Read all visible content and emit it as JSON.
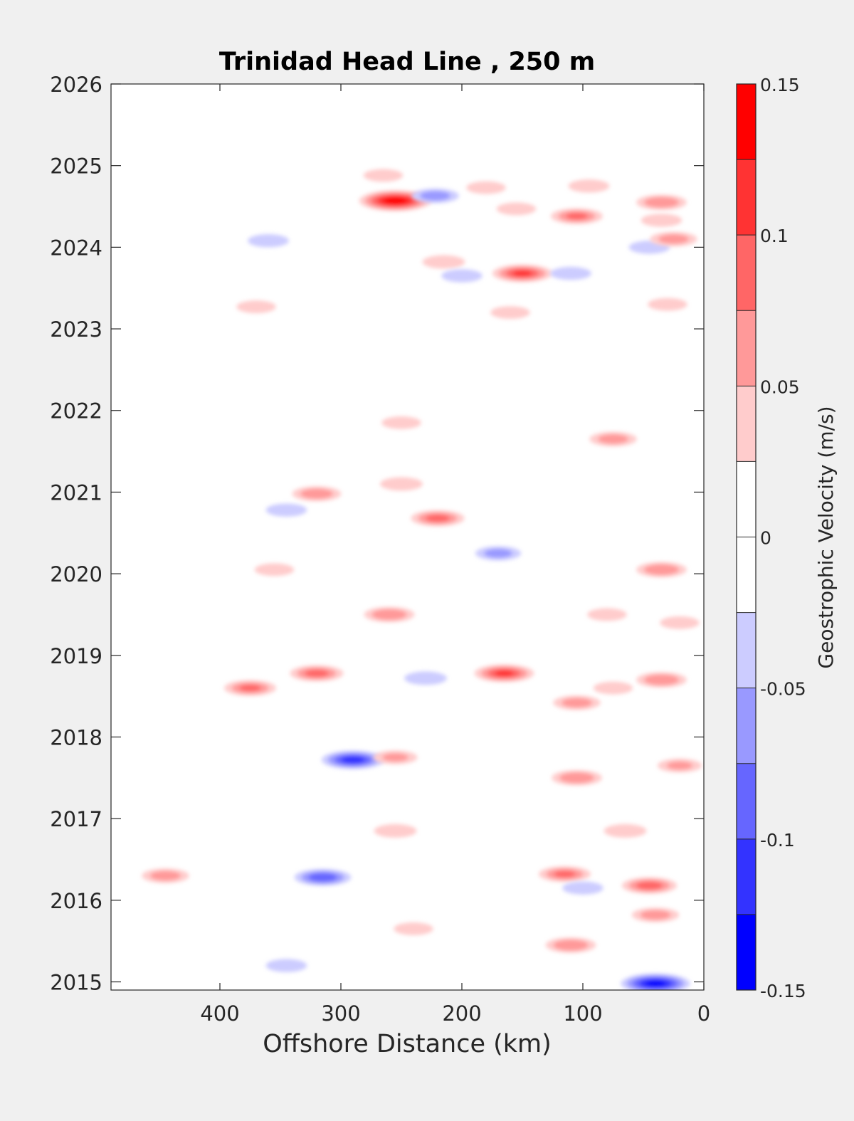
{
  "chart_data": {
    "type": "heatmap",
    "title": "Trinidad Head Line , 250 m",
    "xlabel": "Offshore Distance (km)",
    "ylabel": "",
    "xlim": [
      490,
      0
    ],
    "ylim": [
      2014.9,
      2026
    ],
    "x_ticks": [
      400,
      300,
      200,
      100,
      0
    ],
    "x_tick_labels": [
      "400",
      "300",
      "200",
      "100",
      "0"
    ],
    "y_ticks": [
      2015,
      2016,
      2017,
      2018,
      2019,
      2020,
      2021,
      2022,
      2023,
      2024,
      2025,
      2026
    ],
    "y_tick_labels": [
      "2015",
      "2016",
      "2017",
      "2018",
      "2019",
      "2020",
      "2021",
      "2022",
      "2023",
      "2024",
      "2025",
      "2026"
    ],
    "colorbar": {
      "label": "Geostrophic Velocity (m/s)",
      "range": [
        -0.15,
        0.15
      ],
      "tick_values": [
        0.15,
        0.1,
        0.05,
        0,
        -0.05,
        -0.1,
        -0.15
      ],
      "tick_labels": [
        "0.15",
        "0.1",
        "0.05",
        "0",
        "-0.05",
        "-0.1",
        "-0.15"
      ],
      "levels": [
        {
          "from": 0.125,
          "to": 0.15,
          "color": "#ff0000"
        },
        {
          "from": 0.1,
          "to": 0.125,
          "color": "#ff3333"
        },
        {
          "from": 0.075,
          "to": 0.1,
          "color": "#ff6666"
        },
        {
          "from": 0.05,
          "to": 0.075,
          "color": "#ff9999"
        },
        {
          "from": 0.025,
          "to": 0.05,
          "color": "#ffcccc"
        },
        {
          "from": 0,
          "to": 0.025,
          "color": "#ffffff"
        },
        {
          "from": -0.025,
          "to": 0,
          "color": "#ffffff"
        },
        {
          "from": -0.05,
          "to": -0.025,
          "color": "#ccccff"
        },
        {
          "from": -0.075,
          "to": -0.05,
          "color": "#9999ff"
        },
        {
          "from": -0.1,
          "to": -0.075,
          "color": "#6666ff"
        },
        {
          "from": -0.125,
          "to": -0.1,
          "color": "#3333ff"
        },
        {
          "from": -0.15,
          "to": -0.125,
          "color": "#0000ff"
        }
      ]
    },
    "features": [
      {
        "x": 255,
        "y": 2024.57,
        "v": 0.14
      },
      {
        "x": 265,
        "y": 2024.88,
        "v": 0.035
      },
      {
        "x": 222,
        "y": 2024.63,
        "v": -0.06
      },
      {
        "x": 180,
        "y": 2024.73,
        "v": 0.035
      },
      {
        "x": 95,
        "y": 2024.75,
        "v": 0.04
      },
      {
        "x": 35,
        "y": 2024.55,
        "v": 0.07
      },
      {
        "x": 105,
        "y": 2024.38,
        "v": 0.075
      },
      {
        "x": 155,
        "y": 2024.47,
        "v": 0.035
      },
      {
        "x": 35,
        "y": 2024.33,
        "v": 0.04
      },
      {
        "x": 360,
        "y": 2024.08,
        "v": -0.04
      },
      {
        "x": 45,
        "y": 2024.0,
        "v": -0.04
      },
      {
        "x": 25,
        "y": 2024.1,
        "v": 0.06
      },
      {
        "x": 150,
        "y": 2023.68,
        "v": 0.1
      },
      {
        "x": 215,
        "y": 2023.82,
        "v": 0.045
      },
      {
        "x": 200,
        "y": 2023.65,
        "v": -0.04
      },
      {
        "x": 110,
        "y": 2023.68,
        "v": -0.04
      },
      {
        "x": 370,
        "y": 2023.27,
        "v": 0.035
      },
      {
        "x": 30,
        "y": 2023.3,
        "v": 0.035
      },
      {
        "x": 160,
        "y": 2023.2,
        "v": 0.035
      },
      {
        "x": 250,
        "y": 2021.85,
        "v": 0.035
      },
      {
        "x": 75,
        "y": 2021.65,
        "v": 0.06
      },
      {
        "x": 320,
        "y": 2020.98,
        "v": 0.065
      },
      {
        "x": 250,
        "y": 2021.1,
        "v": 0.045
      },
      {
        "x": 220,
        "y": 2020.68,
        "v": 0.08
      },
      {
        "x": 345,
        "y": 2020.78,
        "v": -0.04
      },
      {
        "x": 35,
        "y": 2020.05,
        "v": 0.07
      },
      {
        "x": 355,
        "y": 2020.05,
        "v": 0.035
      },
      {
        "x": 260,
        "y": 2019.5,
        "v": 0.07
      },
      {
        "x": 170,
        "y": 2020.25,
        "v": -0.055
      },
      {
        "x": 80,
        "y": 2019.5,
        "v": 0.035
      },
      {
        "x": 20,
        "y": 2019.4,
        "v": 0.035
      },
      {
        "x": 320,
        "y": 2018.78,
        "v": 0.08
      },
      {
        "x": 375,
        "y": 2018.6,
        "v": 0.075
      },
      {
        "x": 165,
        "y": 2018.78,
        "v": 0.1
      },
      {
        "x": 230,
        "y": 2018.72,
        "v": -0.045
      },
      {
        "x": 35,
        "y": 2018.7,
        "v": 0.07
      },
      {
        "x": 105,
        "y": 2018.42,
        "v": 0.06
      },
      {
        "x": 75,
        "y": 2018.6,
        "v": 0.035
      },
      {
        "x": 290,
        "y": 2017.72,
        "v": -0.11
      },
      {
        "x": 105,
        "y": 2017.5,
        "v": 0.07
      },
      {
        "x": 255,
        "y": 2017.75,
        "v": 0.05
      },
      {
        "x": 20,
        "y": 2017.65,
        "v": 0.05
      },
      {
        "x": 315,
        "y": 2016.28,
        "v": -0.09
      },
      {
        "x": 445,
        "y": 2016.3,
        "v": 0.06
      },
      {
        "x": 115,
        "y": 2016.32,
        "v": 0.075
      },
      {
        "x": 45,
        "y": 2016.18,
        "v": 0.085
      },
      {
        "x": 255,
        "y": 2016.85,
        "v": 0.045
      },
      {
        "x": 65,
        "y": 2016.85,
        "v": 0.045
      },
      {
        "x": 40,
        "y": 2015.82,
        "v": 0.06
      },
      {
        "x": 110,
        "y": 2015.45,
        "v": 0.07
      },
      {
        "x": 240,
        "y": 2015.65,
        "v": 0.035
      },
      {
        "x": 40,
        "y": 2014.98,
        "v": -0.13
      },
      {
        "x": 345,
        "y": 2015.2,
        "v": -0.04
      },
      {
        "x": 100,
        "y": 2016.15,
        "v": -0.04
      }
    ]
  }
}
